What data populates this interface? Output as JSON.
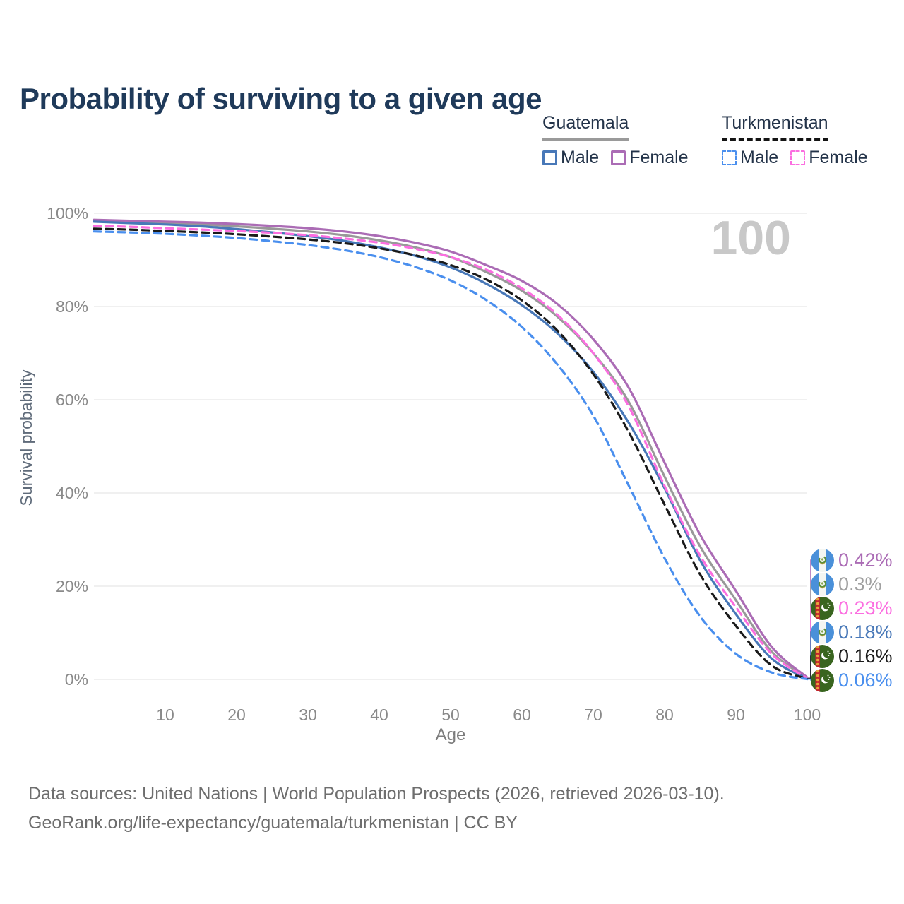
{
  "header": {
    "title": "Probability of surviving to a given age"
  },
  "legend": {
    "groups": [
      {
        "label": "Guatemala",
        "underline_style": "solid",
        "underline_color": "#9a9a9a",
        "items": [
          {
            "label": "Male",
            "color": "#4878b8",
            "dash": "solid"
          },
          {
            "label": "Female",
            "color": "#ab6cb5",
            "dash": "solid"
          }
        ]
      },
      {
        "label": "Turkmenistan",
        "underline_style": "dashed",
        "underline_color": "#141414",
        "items": [
          {
            "label": "Male",
            "color": "#4a8fee",
            "dash": "dashed"
          },
          {
            "label": "Female",
            "color": "#fb6ee0",
            "dash": "dashed"
          }
        ]
      }
    ]
  },
  "chart_data": {
    "type": "line",
    "title": "Probability of surviving to a given age",
    "xlabel": "Age",
    "ylabel": "Survival probability",
    "xlim": [
      0,
      100
    ],
    "ylim": [
      0,
      100
    ],
    "x_ticks": [
      10,
      20,
      30,
      40,
      50,
      60,
      70,
      80,
      90,
      100
    ],
    "y_ticks": [
      0,
      20,
      40,
      60,
      80,
      100
    ],
    "y_tick_suffix": "%",
    "grid": "horizontal",
    "watermark": "100",
    "ages": [
      0,
      5,
      10,
      15,
      20,
      25,
      30,
      35,
      40,
      45,
      50,
      55,
      60,
      65,
      70,
      75,
      80,
      85,
      90,
      95,
      100
    ],
    "series": [
      {
        "name": "Guatemala All",
        "country": "guatemala",
        "color": "#999999",
        "dash": "solid",
        "values": [
          98.4,
          98.2,
          97.9,
          97.6,
          97.2,
          96.7,
          96.1,
          95.3,
          94.2,
          92.7,
          90.6,
          87.4,
          83.4,
          77.8,
          70.0,
          59.5,
          43.5,
          28.5,
          17.0,
          6.0,
          0.3
        ]
      },
      {
        "name": "Guatemala Female",
        "country": "guatemala",
        "color": "#ab6cb5",
        "dash": "solid",
        "values": [
          98.6,
          98.4,
          98.2,
          98.0,
          97.7,
          97.3,
          96.8,
          96.1,
          95.1,
          93.7,
          91.8,
          88.9,
          85.5,
          80.5,
          73.0,
          62.5,
          46.5,
          31.0,
          19.0,
          7.0,
          0.42
        ]
      },
      {
        "name": "Guatemala Male",
        "country": "guatemala",
        "color": "#4878b8",
        "dash": "solid",
        "values": [
          98.2,
          97.9,
          97.6,
          97.2,
          96.6,
          95.9,
          95.1,
          94.1,
          92.7,
          90.9,
          88.4,
          84.9,
          80.3,
          74.2,
          66.0,
          55.0,
          41.0,
          25.5,
          14.0,
          4.5,
          0.18
        ]
      },
      {
        "name": "Turkmenistan Female",
        "country": "turkmenistan",
        "color": "#fb6ee0",
        "dash": "dashed",
        "values": [
          97.3,
          97.1,
          96.8,
          96.5,
          96.2,
          95.8,
          95.3,
          94.6,
          93.7,
          92.4,
          90.6,
          87.9,
          83.9,
          78.2,
          70.0,
          58.5,
          41.5,
          26.5,
          15.5,
          5.5,
          0.23
        ]
      },
      {
        "name": "Turkmenistan All",
        "country": "turkmenistan",
        "color": "#1a1a1a",
        "dash": "dashed",
        "values": [
          96.7,
          96.5,
          96.2,
          95.9,
          95.5,
          95.0,
          94.4,
          93.6,
          92.5,
          91.0,
          88.9,
          85.8,
          81.3,
          74.8,
          65.5,
          53.0,
          37.5,
          22.5,
          11.5,
          3.0,
          0.16
        ]
      },
      {
        "name": "Turkmenistan Male",
        "country": "turkmenistan",
        "color": "#4a8fee",
        "dash": "dashed",
        "values": [
          96.1,
          95.9,
          95.6,
          95.2,
          94.7,
          94.0,
          93.2,
          92.1,
          90.6,
          88.5,
          85.6,
          81.4,
          75.6,
          67.5,
          56.6,
          41.5,
          26.0,
          13.5,
          5.5,
          1.5,
          0.06
        ]
      }
    ],
    "end_labels": [
      {
        "label": "0.42%",
        "color": "#ab6cb5",
        "flag": "guatemala",
        "series": "Guatemala Female"
      },
      {
        "label": "0.3%",
        "color": "#a0a0a0",
        "flag": "guatemala",
        "series": "Guatemala All"
      },
      {
        "label": "0.23%",
        "color": "#fb6ee0",
        "flag": "turkmenistan",
        "series": "Turkmenistan Female"
      },
      {
        "label": "0.18%",
        "color": "#4878b8",
        "flag": "guatemala",
        "series": "Guatemala Male"
      },
      {
        "label": "0.16%",
        "color": "#1a1a1a",
        "flag": "turkmenistan",
        "series": "Turkmenistan All"
      },
      {
        "label": "0.06%",
        "color": "#4a8fee",
        "flag": "turkmenistan",
        "series": "Turkmenistan Male"
      }
    ]
  },
  "footer": {
    "line1": "Data sources: United Nations | World Population Prospects (2026, retrieved 2026-03-10).",
    "line2": "GeoRank.org/life-expectancy/guatemala/turkmenistan | CC BY"
  },
  "colors": {
    "title": "#1f3a5a",
    "grid": "#e8e8e8",
    "axis_text": "#8a8a8a",
    "watermark": "#c8c8c8",
    "footer_text": "#6e6e6e"
  }
}
